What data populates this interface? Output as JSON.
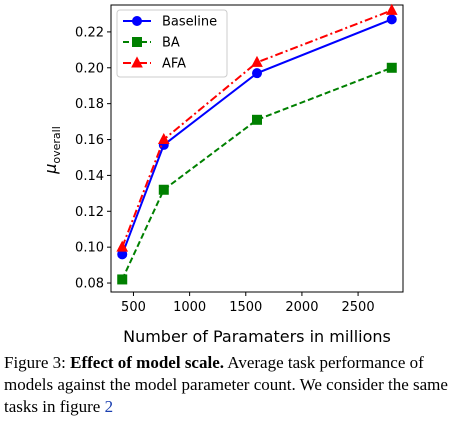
{
  "chart_data": {
    "type": "line",
    "title": "",
    "xlabel": "Number of Paramaters in millions",
    "ylabel": "μ",
    "ylabel_subscript": "overall",
    "xlim": [
      300,
      2900
    ],
    "ylim": [
      0.075,
      0.235
    ],
    "xticks": [
      500,
      1000,
      1500,
      2000,
      2500
    ],
    "xtick_labels": [
      "500",
      "1000",
      "1500",
      "2000",
      "2500"
    ],
    "yticks": [
      0.08,
      0.1,
      0.12,
      0.14,
      0.16,
      0.18,
      0.2,
      0.22
    ],
    "ytick_labels": [
      "0.08",
      "0.10",
      "0.12",
      "0.14",
      "0.16",
      "0.18",
      "0.20",
      "0.22"
    ],
    "grid": false,
    "legend_position": "top-left",
    "x": [
      400,
      770,
      1600,
      2800
    ],
    "series": [
      {
        "name": "Baseline",
        "values": [
          0.096,
          0.157,
          0.197,
          0.227
        ],
        "color": "#0000ff",
        "line": "solid",
        "marker": "circle"
      },
      {
        "name": "BA",
        "values": [
          0.082,
          0.132,
          0.171,
          0.2
        ],
        "color": "#008000",
        "line": "dashed",
        "marker": "square"
      },
      {
        "name": "AFA",
        "values": [
          0.1,
          0.16,
          0.203,
          0.232
        ],
        "color": "#ff0000",
        "line": "dashdot",
        "marker": "triangle"
      }
    ]
  },
  "caption": {
    "prefix": "Figure 3: ",
    "bold": "Effect of model scale.",
    "text": " Average task performance of models against the model parameter count. We consider the same tasks in figure ",
    "ref": "2"
  }
}
